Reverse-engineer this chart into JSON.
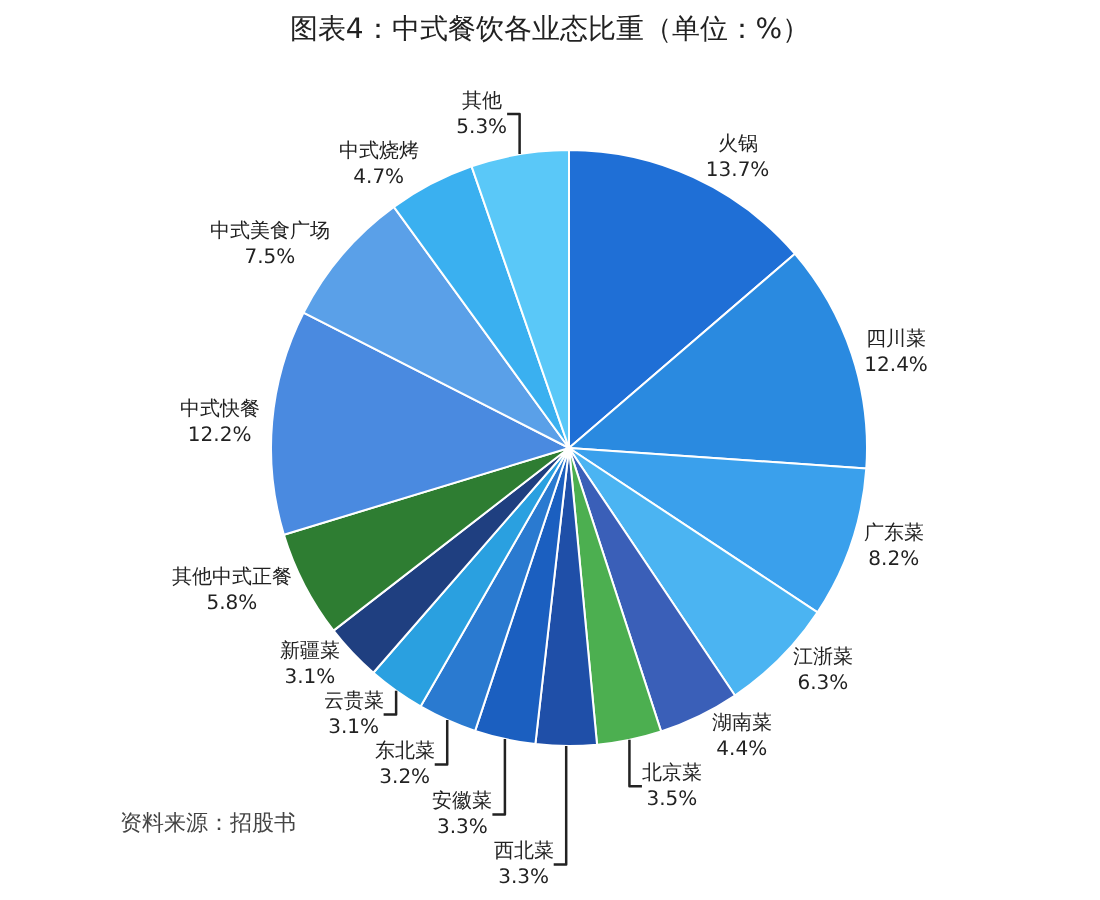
{
  "chart_data": {
    "type": "pie",
    "title": "图表4：中式餐饮各业态比重（单位：%）",
    "categories": [
      "火锅",
      "四川菜",
      "广东菜",
      "江浙菜",
      "湖南菜",
      "北京菜",
      "西北菜",
      "安徽菜",
      "东北菜",
      "云贵菜",
      "新疆菜",
      "其他中式正餐",
      "中式快餐",
      "中式美食广场",
      "中式烧烤",
      "其他"
    ],
    "values": [
      13.7,
      12.4,
      8.2,
      6.3,
      4.4,
      3.5,
      3.3,
      3.3,
      3.2,
      3.1,
      3.1,
      5.8,
      12.2,
      7.5,
      4.7,
      5.3
    ],
    "value_labels": [
      "13.7%",
      "12.4%",
      "8.2%",
      "6.3%",
      "4.4%",
      "3.5%",
      "3.3%",
      "3.3%",
      "3.2%",
      "3.1%",
      "3.1%",
      "5.8%",
      "12.2%",
      "7.5%",
      "4.7%",
      "5.3%"
    ],
    "colors": [
      "#1f6fd6",
      "#2a8ae0",
      "#3aa0ec",
      "#4bb4f2",
      "#3a5fb8",
      "#4caf50",
      "#1f4fa8",
      "#1b5fc0",
      "#2a7ad0",
      "#2aa0e0",
      "#1f3f80",
      "#2e7d32",
      "#4a8ae0",
      "#5aa0e8",
      "#3ab0f0",
      "#5ac8f8"
    ],
    "legend": false,
    "annotations": [
      "资料来源：招股书"
    ]
  }
}
